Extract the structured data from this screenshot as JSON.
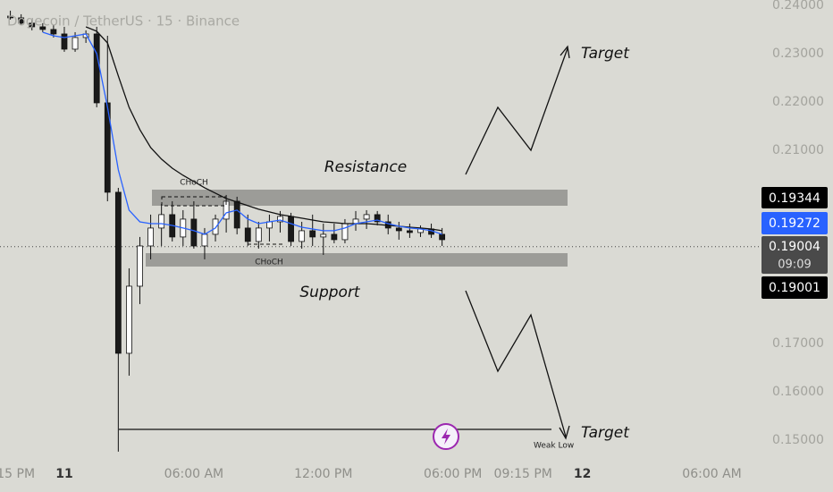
{
  "chart_data": {
    "type": "candlestick",
    "title": "Dogecoin / TetherUS · 15 · Binance",
    "x": [
      -2.5,
      -2,
      -1.5,
      -1,
      -0.5,
      0,
      0.5,
      1,
      1.5,
      2,
      2.5,
      3,
      3.5,
      4,
      4.5,
      5,
      5.5,
      6,
      6.5,
      7,
      7.5,
      8,
      8.5,
      9,
      9.5,
      10,
      10.5,
      11,
      11.5,
      12,
      12.5,
      13,
      13.5,
      14,
      14.5,
      15,
      15.5,
      16,
      16.5,
      17,
      17.5
    ],
    "open": [
      0.23778,
      0.23741,
      0.2363,
      0.23555,
      0.235,
      0.23407,
      0.23092,
      0.23333,
      0.23407,
      0.21981,
      0.2013,
      0.16796,
      0.18185,
      0.19018,
      0.19389,
      0.19667,
      0.19204,
      0.19574,
      0.19018,
      0.19259,
      0.19574,
      0.19944,
      0.19389,
      0.19111,
      0.19389,
      0.19518,
      0.1963,
      0.19111,
      0.19333,
      0.19204,
      0.19259,
      0.19148,
      0.19481,
      0.19574,
      0.19667,
      0.19518,
      0.19389,
      0.19333,
      0.19296,
      0.1937,
      0.19259
    ],
    "high": [
      0.23889,
      0.23815,
      0.23704,
      0.2363,
      0.23592,
      0.23555,
      0.23444,
      0.23481,
      0.23555,
      0.2337,
      0.20222,
      0.18555,
      0.19204,
      0.19667,
      0.19889,
      0.19944,
      0.19759,
      0.19944,
      0.19389,
      0.19667,
      0.20074,
      0.20037,
      0.19667,
      0.19518,
      0.19667,
      0.19741,
      0.19704,
      0.19518,
      0.19667,
      0.19481,
      0.19481,
      0.19574,
      0.19741,
      0.19759,
      0.19741,
      0.19667,
      0.19518,
      0.19481,
      0.19444,
      0.19481,
      0.19389
    ],
    "low": [
      0.23704,
      0.23592,
      0.23481,
      0.23444,
      0.23333,
      0.23037,
      0.23037,
      0.23222,
      0.21889,
      0.19944,
      0.14759,
      0.16333,
      0.17815,
      0.18741,
      0.19018,
      0.19111,
      0.19018,
      0.18963,
      0.18741,
      0.19111,
      0.19296,
      0.19259,
      0.19018,
      0.18963,
      0.19111,
      0.19296,
      0.19018,
      0.18963,
      0.19018,
      0.18833,
      0.19074,
      0.19074,
      0.19333,
      0.1937,
      0.19444,
      0.19259,
      0.19148,
      0.19185,
      0.19204,
      0.19185,
      0.19018
    ],
    "close": [
      0.23741,
      0.2363,
      0.23555,
      0.235,
      0.23407,
      0.23092,
      0.23333,
      0.23407,
      0.21981,
      0.2013,
      0.16796,
      0.18185,
      0.19018,
      0.19389,
      0.19667,
      0.19204,
      0.19574,
      0.19018,
      0.19259,
      0.19574,
      0.19944,
      0.19389,
      0.19111,
      0.19389,
      0.19518,
      0.1963,
      0.19111,
      0.19333,
      0.19204,
      0.19259,
      0.19148,
      0.19481,
      0.19574,
      0.19667,
      0.19518,
      0.19389,
      0.19333,
      0.19296,
      0.1937,
      0.19259,
      0.19148
    ],
    "up_color": "#ffffff",
    "down_color": "#1a1a1a",
    "series": [
      {
        "color": "#111111",
        "values": [
          null,
          null,
          null,
          null,
          null,
          null,
          null,
          0.23555,
          0.23463,
          0.23222,
          0.22537,
          0.21889,
          0.21426,
          0.21055,
          0.20815,
          0.20629,
          0.20481,
          0.20352,
          0.20222,
          0.20111,
          0.2,
          0.19926,
          0.19852,
          0.19778,
          0.19722,
          0.19667,
          0.1963,
          0.19593,
          0.19555,
          0.19518,
          0.195,
          0.19481,
          0.19481,
          0.19481,
          0.19463,
          0.19444,
          0.19426,
          0.19407,
          0.19389,
          0.1937,
          0.19333
        ]
      },
      {
        "color": "#2962ff",
        "values": [
          null,
          null,
          null,
          0.23444,
          0.2337,
          0.23333,
          0.2337,
          0.23407,
          0.23,
          0.21889,
          0.20592,
          0.19759,
          0.19518,
          0.19481,
          0.19481,
          0.19444,
          0.19389,
          0.19333,
          0.19259,
          0.19389,
          0.19704,
          0.19759,
          0.19574,
          0.19481,
          0.19518,
          0.19555,
          0.19481,
          0.19407,
          0.1937,
          0.19333,
          0.19333,
          0.19389,
          0.19481,
          0.19518,
          0.19555,
          0.19481,
          0.19426,
          0.19389,
          0.1937,
          0.19333,
          0.19259
        ]
      }
    ],
    "last_price": 0.19004,
    "countdown": "09:09",
    "price_labels": [
      {
        "value": 0.19344,
        "color": "#000000"
      },
      {
        "value": 0.19272,
        "color": "#2962ff"
      },
      {
        "value": 0.19001,
        "color": "#000000"
      }
    ],
    "xlim": [
      -2.98,
      31.8
    ],
    "ylim": [
      0.1448,
      0.2411
    ],
    "xticks": [
      {
        "value": -2.25,
        "label": "15 PM"
      },
      {
        "value": 0,
        "label": "11"
      },
      {
        "value": 6,
        "label": "06:00 AM"
      },
      {
        "value": 12,
        "label": "12:00 PM"
      },
      {
        "value": 18,
        "label": "06:00 PM"
      },
      {
        "value": 21.25,
        "label": "09:15 PM"
      },
      {
        "value": 24,
        "label": "12"
      },
      {
        "value": 30,
        "label": "06:00 AM"
      }
    ],
    "yticks": [
      {
        "value": 0.24,
        "label": "0.24000"
      },
      {
        "value": 0.23,
        "label": "0.23000"
      },
      {
        "value": 0.22,
        "label": "0.22000"
      },
      {
        "value": 0.21,
        "label": "0.21000"
      },
      {
        "value": 0.17,
        "label": "0.17000"
      },
      {
        "value": 0.16,
        "label": "0.16000"
      },
      {
        "value": 0.15,
        "label": "0.15000"
      }
    ],
    "annotations": [
      "Resistance",
      "Support",
      "CHoCH",
      "CHoCH",
      "Target",
      "Target",
      "Weak Low"
    ]
  }
}
